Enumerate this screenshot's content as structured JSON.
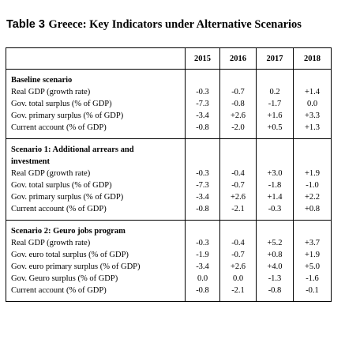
{
  "title": {
    "tag": "Table 3",
    "text": "Greece: Key Indicators under Alternative Scenarios"
  },
  "table": {
    "years": [
      "2015",
      "2016",
      "2017",
      "2018"
    ],
    "sections": [
      {
        "name_lines": [
          "Baseline scenario"
        ],
        "rows": [
          {
            "label": "Real GDP (growth rate)",
            "values": [
              "-0.3",
              "-0.7",
              "0.2",
              "+1.4"
            ]
          },
          {
            "label": "Gov. total surplus (% of GDP)",
            "values": [
              "-7.3",
              "-0.8",
              "-1.7",
              "0.0"
            ]
          },
          {
            "label": "Gov. primary surplus (% of GDP)",
            "values": [
              "-3.4",
              "+2.6",
              "+1.6",
              "+3.3"
            ]
          },
          {
            "label": "Current account (% of GDP)",
            "values": [
              "-0.8",
              "-2.0",
              "+0.5",
              "+1.3"
            ]
          }
        ]
      },
      {
        "name_lines": [
          "Scenario 1: Additional arrears and",
          "investment"
        ],
        "rows": [
          {
            "label": "Real GDP (growth rate)",
            "values": [
              "-0.3",
              "-0.4",
              "+3.0",
              "+1.9"
            ]
          },
          {
            "label": "Gov. total surplus (% of GDP)",
            "values": [
              "-7.3",
              "-0.7",
              "-1.8",
              "-1.0"
            ]
          },
          {
            "label": "Gov. primary surplus (% of GDP)",
            "values": [
              "-3.4",
              "+2.6",
              "+1.4",
              "+2.2"
            ]
          },
          {
            "label": "Current account (% of GDP)",
            "values": [
              "-0.8",
              "-2.1",
              "-0.3",
              "+0.8"
            ]
          }
        ]
      },
      {
        "name_lines": [
          "Scenario 2: Geuro jobs program"
        ],
        "rows": [
          {
            "label": "Real GDP (growth rate)",
            "values": [
              "-0.3",
              "-0.4",
              "+5.2",
              "+3.7"
            ]
          },
          {
            "label": "Gov. euro total surplus (% of GDP)",
            "values": [
              "-1.9",
              "-0.7",
              "+0.8",
              "+1.9"
            ]
          },
          {
            "label": "Gov. euro primary surplus (% of GDP)",
            "values": [
              "-3.4",
              "+2.6",
              "+4.0",
              "+5.0"
            ]
          },
          {
            "label": "Gov. Geuro surplus (% of GDP)",
            "values": [
              "0.0",
              "0.0",
              "-1.3",
              "-1.6"
            ]
          },
          {
            "label": "Current account (% of GDP)",
            "values": [
              "-0.8",
              "-2.1",
              "-0.8",
              "-0.1"
            ]
          }
        ]
      }
    ]
  }
}
